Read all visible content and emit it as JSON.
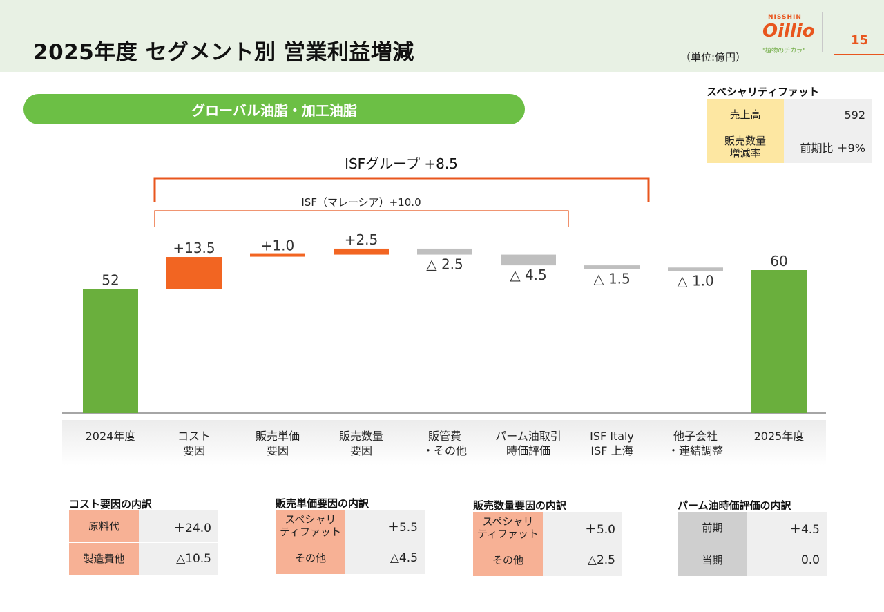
{
  "header": {
    "title": "2025年度 セグメント別 営業利益増減",
    "unit": "（単位:億円）",
    "logo_top": "NISSHIN",
    "logo_main": "Oillio",
    "logo_tagline": "\"植物のチカラ\"",
    "page_number": "15"
  },
  "segment_label": "グローバル油脂・加工油脂",
  "specialty_fat": {
    "title": "スペシャリティファット",
    "rows": [
      {
        "label": "売上高",
        "value": "592"
      },
      {
        "label": "販売数量\n増減率",
        "value": "前期比 ＋9%"
      }
    ]
  },
  "brackets": {
    "isf_group": "ISFグループ +8.5",
    "isf_malaysia": "ISF（マレーシア）+10.0"
  },
  "chart_data": {
    "type": "waterfall",
    "categories": [
      "2024年度",
      "コスト\n要因",
      "販売単価\n要因",
      "販売数量\n要因",
      "販管費\n・その他",
      "パーム油取引\n時価評価",
      "ISF Italy\nISF 上海",
      "他子会社\n・連結調整",
      "2025年度"
    ],
    "values": [
      52,
      13.5,
      1.0,
      2.5,
      -2.5,
      -4.5,
      -1.5,
      -1.0,
      60
    ],
    "kinds": [
      "total",
      "delta",
      "delta",
      "delta",
      "delta",
      "delta",
      "delta",
      "delta",
      "total"
    ],
    "labels": [
      "52",
      "+13.5",
      "+1.0",
      "+2.5",
      "△ 2.5",
      "△ 4.5",
      "△ 1.5",
      "△ 1.0",
      "60"
    ],
    "colors": {
      "total": "#6aaf3d",
      "increase": "#f26522",
      "decrease": "#bfbfbf",
      "bracket": "#e8561e"
    }
  },
  "breakdowns": [
    {
      "title": "コスト要因の内訳",
      "style": "salmon",
      "rows": [
        {
          "label": "原料代",
          "value": "＋24.0"
        },
        {
          "label": "製造費他",
          "value": "△10.5"
        }
      ]
    },
    {
      "title": "販売単価要因の内訳",
      "style": "salmon",
      "rows": [
        {
          "label": "スペシャリ\nティファット",
          "value": "＋5.5"
        },
        {
          "label": "その他",
          "value": "△4.5"
        }
      ]
    },
    {
      "title": "販売数量要因の内訳",
      "style": "salmon",
      "rows": [
        {
          "label": "スペシャリ\nティファット",
          "value": "＋5.0"
        },
        {
          "label": "その他",
          "value": "△2.5"
        }
      ]
    },
    {
      "title": "パーム油時価評価の内訳",
      "style": "grey",
      "rows": [
        {
          "label": "前期",
          "value": "＋4.5"
        },
        {
          "label": "当期",
          "value": "0.0"
        }
      ]
    }
  ]
}
